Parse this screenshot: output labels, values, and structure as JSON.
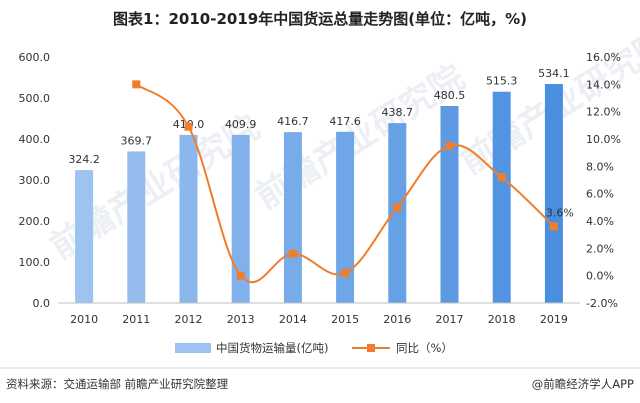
{
  "chart_data": {
    "type": "bar+line",
    "title": "图表1：2010-2019年中国货运总量走势图(单位：亿吨，%)",
    "categories": [
      "2010",
      "2011",
      "2012",
      "2013",
      "2014",
      "2015",
      "2016",
      "2017",
      "2018",
      "2019"
    ],
    "series": [
      {
        "name": "中国货物运输量(亿吨)",
        "kind": "bar",
        "axis": "left",
        "values": [
          324.2,
          369.7,
          410.0,
          409.9,
          416.7,
          417.6,
          438.7,
          480.5,
          515.3,
          534.1
        ],
        "labels": [
          "324.2",
          "369.7",
          "410.0",
          "409.9",
          "416.7",
          "417.6",
          "438.7",
          "480.5",
          "515.3",
          "534.1"
        ]
      },
      {
        "name": "同比（%）",
        "kind": "line",
        "axis": "right",
        "values": [
          null,
          14.0,
          10.9,
          0.0,
          1.6,
          0.2,
          5.0,
          9.5,
          7.2,
          3.6
        ],
        "labels": [
          null,
          null,
          null,
          null,
          null,
          null,
          null,
          null,
          null,
          "3.6%"
        ]
      }
    ],
    "yleft": {
      "min": 0,
      "max": 600,
      "step": 100,
      "tick_labels": [
        "0.0",
        "100.0",
        "200.0",
        "300.0",
        "400.0",
        "500.0",
        "600.0"
      ]
    },
    "yright": {
      "min": -2,
      "max": 16,
      "step": 2,
      "tick_labels": [
        "-2.0%",
        "0.0%",
        "2.0%",
        "4.0%",
        "6.0%",
        "8.0%",
        "10.0%",
        "12.0%",
        "14.0%",
        "16.0%"
      ]
    },
    "grid": false,
    "legend": "bottom",
    "colors": {
      "bar_light": "#9dc3f0",
      "bar_dark": "#4a8ee0",
      "line": "#f07d2c"
    }
  },
  "footer": {
    "source": "资料来源：交通运输部 前瞻产业研究院整理",
    "brand": "@前瞻经济学人APP"
  },
  "watermark": "前瞻产业研究院"
}
